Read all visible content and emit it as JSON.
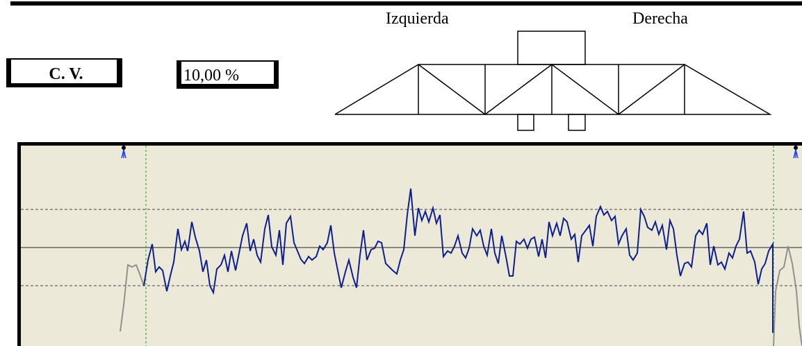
{
  "header": {
    "left_label": "Izquierda",
    "right_label": "Derecha"
  },
  "cv": {
    "label": "C. V.",
    "value": "10,00 %"
  }
}
